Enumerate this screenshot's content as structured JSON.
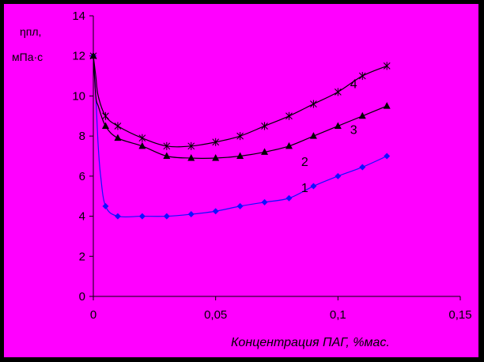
{
  "chart_data": {
    "type": "line",
    "title": "",
    "ylabel_line1": "ηпл,",
    "ylabel_line2": "мПа·с",
    "xlabel": "Концентрация ПАГ, %мас.",
    "xlim": [
      0,
      0.15
    ],
    "ylim": [
      0,
      14
    ],
    "x_ticks": [
      0,
      0.05,
      0.1,
      0.15
    ],
    "x_tick_labels": [
      "0",
      "0,05",
      "0,1",
      "0,15"
    ],
    "y_ticks": [
      0,
      2,
      4,
      6,
      8,
      10,
      12,
      14
    ],
    "y_tick_labels": [
      "0",
      "2",
      "4",
      "6",
      "8",
      "10",
      "12",
      "14"
    ],
    "grid": false,
    "colors": {
      "background": "#FF00FF",
      "series1": "#1010FF",
      "series_other": "#000000"
    },
    "series": [
      {
        "name": "1",
        "marker": "diamond",
        "color": "#1010FF",
        "x": [
          0,
          0.001,
          0.002,
          0.003,
          0.005,
          0.01,
          0.02,
          0.03,
          0.04,
          0.05,
          0.06,
          0.07,
          0.08,
          0.09,
          0.1,
          0.11,
          0.12
        ],
        "y": [
          12,
          10,
          7.5,
          6,
          4.5,
          4.0,
          4.0,
          4.0,
          4.1,
          4.25,
          4.5,
          4.7,
          4.9,
          5.5,
          6.0,
          6.45,
          7.0
        ]
      },
      {
        "name": "2",
        "marker": "triangle",
        "color": "#000000",
        "x": [
          0,
          0.001,
          0.002,
          0.005,
          0.01,
          0.02,
          0.03,
          0.04,
          0.05,
          0.06,
          0.07,
          0.08,
          0.09,
          0.1,
          0.11,
          0.12
        ],
        "y": [
          12,
          10,
          9.5,
          8.5,
          7.9,
          7.5,
          7.0,
          6.9,
          6.9,
          7.0,
          7.2,
          7.5,
          8.0,
          8.5,
          9.0,
          9.5
        ]
      },
      {
        "name": "4",
        "marker": "star",
        "color": "#000000",
        "x": [
          0,
          0.001,
          0.002,
          0.005,
          0.01,
          0.02,
          0.03,
          0.04,
          0.05,
          0.06,
          0.07,
          0.08,
          0.09,
          0.1,
          0.11,
          0.12
        ],
        "y": [
          12,
          11,
          10,
          9.0,
          8.5,
          7.9,
          7.5,
          7.5,
          7.7,
          8.0,
          8.5,
          9.0,
          9.6,
          10.2,
          11.0,
          11.5
        ]
      }
    ],
    "annotations": [
      {
        "text": "1",
        "x": 0.085,
        "y": 5.2
      },
      {
        "text": "2",
        "x": 0.085,
        "y": 6.5
      },
      {
        "text": "3",
        "x": 0.105,
        "y": 8.1
      },
      {
        "text": "4",
        "x": 0.105,
        "y": 10.4
      }
    ]
  }
}
